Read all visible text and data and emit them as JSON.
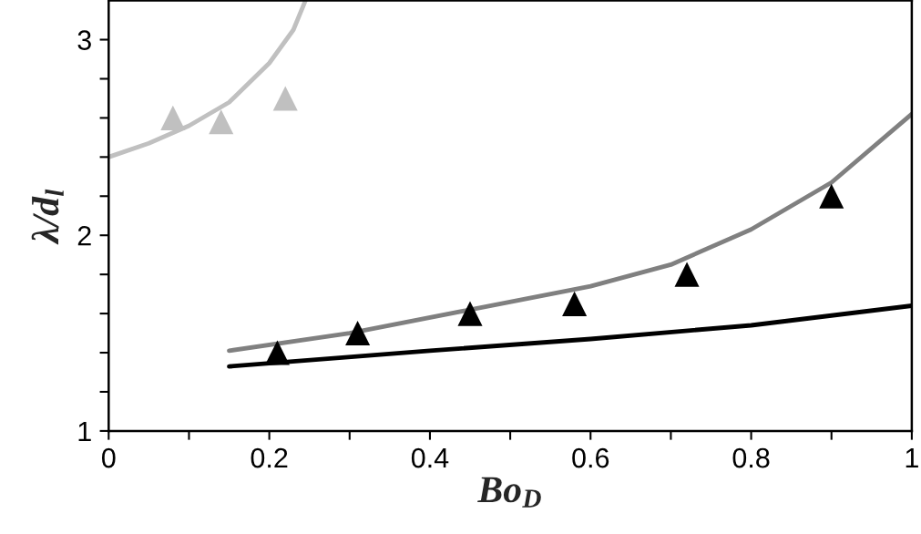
{
  "chart_data": {
    "type": "line",
    "xlabel": "Bo$_{D}$",
    "ylabel": "λ/d$_{l}$",
    "xlim": [
      0,
      1
    ],
    "ylim": [
      1,
      3.2
    ],
    "xticks": [
      0,
      {
        "value": 0.1,
        "label": null
      },
      0.2,
      {
        "value": 0.3,
        "label": null
      },
      0.4,
      {
        "value": 0.5,
        "label": null
      },
      0.6,
      {
        "value": 0.7,
        "label": null
      },
      0.8,
      {
        "value": 0.9,
        "label": null
      },
      1
    ],
    "yticks": [
      1,
      {
        "value": 1.2,
        "label": null
      },
      {
        "value": 1.4,
        "label": null
      },
      {
        "value": 1.6,
        "label": null
      },
      {
        "value": 1.8,
        "label": null
      },
      2,
      {
        "value": 2.2,
        "label": null
      },
      {
        "value": 2.4,
        "label": null
      },
      {
        "value": 2.6,
        "label": null
      },
      {
        "value": 2.8,
        "label": null
      },
      3
    ],
    "grid": false,
    "series": [
      {
        "color": "#c0c0c0",
        "marker": "none",
        "x": [
          0,
          0.05,
          0.1,
          0.15,
          0.2,
          0.23,
          0.245
        ],
        "values": [
          2.4,
          2.47,
          2.56,
          2.68,
          2.88,
          3.05,
          3.2
        ]
      },
      {
        "color": "#808080",
        "marker": "none",
        "x": [
          0.15,
          0.3,
          0.45,
          0.6,
          0.7,
          0.8,
          0.9,
          1.0
        ],
        "values": [
          1.41,
          1.5,
          1.62,
          1.74,
          1.85,
          2.03,
          2.27,
          2.62
        ]
      },
      {
        "color": "#000000",
        "marker": "none",
        "x": [
          0.15,
          0.4,
          0.6,
          0.8,
          1.0
        ],
        "values": [
          1.33,
          1.41,
          1.47,
          1.54,
          1.64
        ]
      },
      {
        "type": "scatter",
        "color": "#c0c0c0",
        "marker": "triangle",
        "x": [
          0.08,
          0.14,
          0.22
        ],
        "values": [
          2.6,
          2.58,
          2.7
        ]
      },
      {
        "type": "scatter",
        "color": "#000000",
        "marker": "triangle",
        "x": [
          0.21,
          0.31,
          0.45,
          0.58,
          0.72,
          0.9
        ],
        "values": [
          1.4,
          1.5,
          1.6,
          1.65,
          1.8,
          2.2
        ]
      }
    ]
  }
}
